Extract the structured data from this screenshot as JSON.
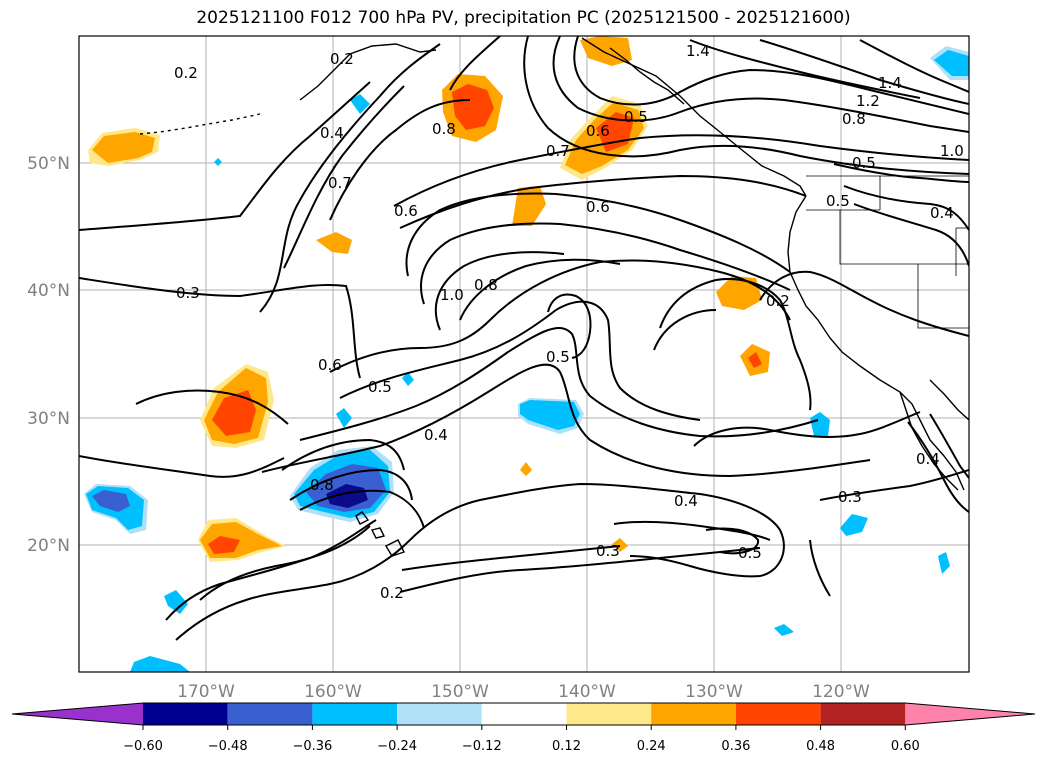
{
  "title": "2025121100 F012 700 hPa PV, precipitation PC (2025121500 - 2025121600)",
  "map": {
    "lat_ticks": [
      "50°N",
      "40°N",
      "30°N",
      "20°N"
    ],
    "lon_ticks": [
      "170°W",
      "160°W",
      "150°W",
      "140°W",
      "130°W",
      "120°W"
    ],
    "contour_labels": [
      "0.2",
      "0.2",
      "0.4",
      "0.7",
      "0.6",
      "0.8",
      "0.6",
      "0.5",
      "0.7",
      "0.6",
      "1.4",
      "1.4",
      "1.2",
      "0.8",
      "0.5",
      "1.0",
      "0.5",
      "0.4",
      "0.3",
      "1.0",
      "0.8",
      "0.5",
      "0.2",
      "0.6",
      "0.5",
      "0.4",
      "0.8",
      "0.4",
      "0.3",
      "0.5",
      "0.3",
      "0.2",
      "0.4"
    ],
    "colors": {
      "blue_dark": "#0a0a8a",
      "blue_mid": "#3a5fd0",
      "blue_light": "#00bfff",
      "blue_pale": "#aee0f8",
      "yellow_pale": "#ffe88a",
      "orange": "#ffa500",
      "orange_red": "#ff4500",
      "grid": "#b0b0b0"
    }
  },
  "colorbar": {
    "ticks": [
      "−0.60",
      "−0.48",
      "−0.36",
      "−0.24",
      "−0.12",
      "0.12",
      "0.24",
      "0.36",
      "0.48",
      "0.60"
    ],
    "colors": [
      "#9932cc",
      "#000090",
      "#3a5fd0",
      "#00bfff",
      "#aee0f8",
      "#ffffff",
      "#ffe88a",
      "#ffa500",
      "#ff4500",
      "#b22222",
      "#ff82ab"
    ]
  }
}
